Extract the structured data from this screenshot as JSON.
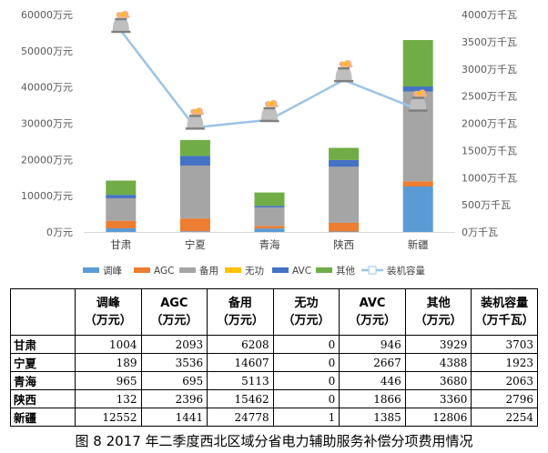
{
  "chart_data": {
    "type": "bar",
    "stacked": true,
    "categories": [
      "甘肃",
      "宁夏",
      "青海",
      "陕西",
      "新疆"
    ],
    "series": [
      {
        "name": "调峰",
        "color": "#5b9bd5",
        "values": [
          1004,
          189,
          965,
          132,
          12552
        ]
      },
      {
        "name": "AGC",
        "color": "#ed7d31",
        "values": [
          2093,
          3536,
          695,
          2396,
          1441
        ]
      },
      {
        "name": "备用",
        "color": "#a5a5a5",
        "values": [
          6208,
          14607,
          5113,
          15462,
          24778
        ]
      },
      {
        "name": "无功",
        "color": "#ffc000",
        "values": [
          0,
          0,
          0,
          0,
          1
        ]
      },
      {
        "name": "AVC",
        "color": "#4472c4",
        "values": [
          946,
          2667,
          446,
          1866,
          1385
        ]
      },
      {
        "name": "其他",
        "color": "#70ad47",
        "values": [
          3929,
          4388,
          3680,
          3360,
          12806
        ]
      }
    ],
    "line_series": {
      "name": "装机容量",
      "color": "#9dc3e6",
      "axis": "right",
      "values": [
        3703,
        1923,
        2063,
        2796,
        2254
      ]
    },
    "ylim": [
      0,
      60000
    ],
    "y2lim": [
      0,
      4000
    ],
    "yticks": [
      "0万元",
      "10000万元",
      "20000万元",
      "30000万元",
      "40000万元",
      "50000万元",
      "60000万元"
    ],
    "y2ticks": [
      "0万千瓦",
      "500万千瓦",
      "1000万千瓦",
      "1500万千瓦",
      "2000万千瓦",
      "2500万千瓦",
      "3000万千瓦",
      "3500万千瓦",
      "4000万千瓦"
    ],
    "legend": "bottom",
    "grid": false
  },
  "table": {
    "headers": [
      {
        "name": "调峰",
        "unit": "（万元）"
      },
      {
        "name": "AGC",
        "unit": "（万元）"
      },
      {
        "name": "备用",
        "unit": "（万元）"
      },
      {
        "name": "无功",
        "unit": "（万元）"
      },
      {
        "name": "AVC",
        "unit": "（万元）"
      },
      {
        "name": "其他",
        "unit": "（万元）"
      },
      {
        "name": "装机容量",
        "unit": "（万千瓦）"
      }
    ],
    "rows": [
      {
        "label": "甘肃",
        "values": [
          "1004",
          "2093",
          "6208",
          "0",
          "946",
          "3929",
          "3703"
        ]
      },
      {
        "label": "宁夏",
        "values": [
          "189",
          "3536",
          "14607",
          "0",
          "2667",
          "4388",
          "1923"
        ]
      },
      {
        "label": "青海",
        "values": [
          "965",
          "695",
          "5113",
          "0",
          "446",
          "3680",
          "2063"
        ]
      },
      {
        "label": "陕西",
        "values": [
          "132",
          "2396",
          "15462",
          "0",
          "1866",
          "3360",
          "2796"
        ]
      },
      {
        "label": "新疆",
        "values": [
          "12552",
          "1441",
          "24778",
          "1",
          "1385",
          "12806",
          "2254"
        ]
      }
    ]
  },
  "caption": "图 8   2017 年二季度西北区域分省电力辅助服务补偿分项费用情况"
}
